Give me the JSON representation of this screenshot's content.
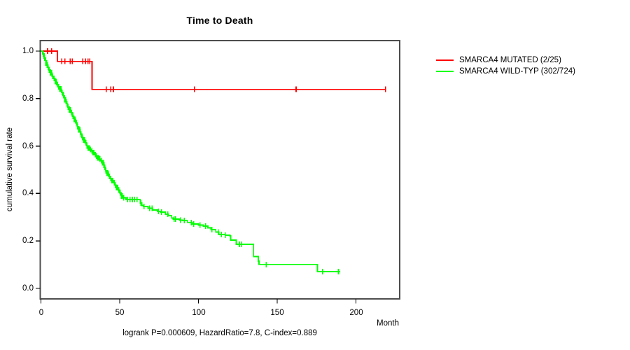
{
  "title": "Time to Death",
  "annotation": "logrank P=0.000609, HazardRatio=7.8, C-index=0.889",
  "legend": {
    "entries": [
      {
        "label": "SMARCA4 MUTATED (2/25)",
        "color": "#ff0000"
      },
      {
        "label": "SMARCA4 WILD-TYP (302/724)",
        "color": "#00ff00"
      }
    ]
  },
  "chart_data": {
    "type": "line",
    "subtype": "kaplan-meier-step-curves",
    "title": "Time to Death",
    "xlabel": "Month",
    "ylabel": "cumulative survival rate",
    "xlim": [
      0,
      228
    ],
    "ylim": [
      -0.04,
      1.04
    ],
    "grid": false,
    "legend_position": "right-outside-top",
    "x_axis": {
      "ticks": [
        0,
        50,
        100,
        150,
        200
      ],
      "tick_labels": [
        "0",
        "50",
        "100",
        "150",
        "200"
      ]
    },
    "y_axis": {
      "ticks": [
        1.0,
        0.8,
        0.6,
        0.4,
        0.2,
        0.0
      ],
      "tick_labels": [
        "1.0",
        "0.8",
        "0.6",
        "0.4",
        "0.2",
        "0.0"
      ]
    },
    "series": [
      {
        "name": "SMARCA4 MUTATED (2/25)",
        "color": "#ff0000",
        "events": "2 deaths / 25 patients",
        "steps": [
          [
            0,
            1.0
          ],
          [
            10.5,
            1.0
          ],
          [
            10.5,
            0.9565
          ],
          [
            32.5,
            0.9565
          ],
          [
            32.5,
            0.8385
          ],
          [
            219,
            0.8385
          ]
        ],
        "censor_months": [
          4.2,
          6.8,
          13.3,
          15.3,
          18.5,
          19.8,
          26.5,
          28.3,
          29.8,
          31.0,
          41.5,
          44.3,
          46.0,
          97.5,
          162,
          218.8
        ]
      },
      {
        "name": "SMARCA4 WILD-TYP (302/724)",
        "color": "#00ff00",
        "events": "302 deaths / 724 patients",
        "steps": [
          [
            0,
            1.0
          ],
          [
            1,
            0.988
          ],
          [
            2,
            0.97
          ],
          [
            3,
            0.95
          ],
          [
            4,
            0.932
          ],
          [
            5,
            0.92
          ],
          [
            6,
            0.908
          ],
          [
            7,
            0.894
          ],
          [
            8,
            0.885
          ],
          [
            9,
            0.872
          ],
          [
            10,
            0.858
          ],
          [
            11,
            0.85
          ],
          [
            12,
            0.84
          ],
          [
            13,
            0.826
          ],
          [
            14,
            0.812
          ],
          [
            15,
            0.795
          ],
          [
            16,
            0.778
          ],
          [
            17,
            0.764
          ],
          [
            18,
            0.752
          ],
          [
            19,
            0.74
          ],
          [
            20,
            0.726
          ],
          [
            21,
            0.712
          ],
          [
            22,
            0.698
          ],
          [
            23,
            0.682
          ],
          [
            24,
            0.668
          ],
          [
            25,
            0.65
          ],
          [
            26,
            0.636
          ],
          [
            27,
            0.625
          ],
          [
            28,
            0.613
          ],
          [
            29,
            0.601
          ],
          [
            30,
            0.592
          ],
          [
            31,
            0.586
          ],
          [
            32,
            0.58
          ],
          [
            33,
            0.572
          ],
          [
            34,
            0.564
          ],
          [
            35,
            0.557
          ],
          [
            36,
            0.55
          ],
          [
            37,
            0.545
          ],
          [
            38,
            0.538
          ],
          [
            39,
            0.53
          ],
          [
            40,
            0.51
          ],
          [
            41,
            0.495
          ],
          [
            42,
            0.485
          ],
          [
            43,
            0.472
          ],
          [
            44,
            0.463
          ],
          [
            45,
            0.455
          ],
          [
            46,
            0.445
          ],
          [
            47,
            0.435
          ],
          [
            48,
            0.425
          ],
          [
            49,
            0.415
          ],
          [
            50,
            0.403
          ],
          [
            51,
            0.39
          ],
          [
            52,
            0.382
          ],
          [
            54,
            0.375
          ],
          [
            62,
            0.375
          ],
          [
            63,
            0.36
          ],
          [
            64,
            0.35
          ],
          [
            65,
            0.345
          ],
          [
            68,
            0.338
          ],
          [
            71,
            0.33
          ],
          [
            74,
            0.325
          ],
          [
            76,
            0.322
          ],
          [
            79,
            0.313
          ],
          [
            81,
            0.307
          ],
          [
            83,
            0.297
          ],
          [
            84,
            0.292
          ],
          [
            88,
            0.288
          ],
          [
            90,
            0.286
          ],
          [
            93,
            0.278
          ],
          [
            96,
            0.271
          ],
          [
            100,
            0.267
          ],
          [
            103,
            0.263
          ],
          [
            106,
            0.255
          ],
          [
            108,
            0.248
          ],
          [
            111,
            0.238
          ],
          [
            113,
            0.227
          ],
          [
            117,
            0.224
          ],
          [
            120,
            0.221
          ],
          [
            120.5,
            0.204
          ],
          [
            124,
            0.186
          ],
          [
            135,
            0.186
          ],
          [
            135,
            0.134
          ],
          [
            137,
            0.134
          ],
          [
            138,
            0.115
          ],
          [
            138.5,
            0.101
          ],
          [
            175.5,
            0.101
          ],
          [
            175.5,
            0.071
          ],
          [
            190,
            0.071
          ]
        ],
        "censor_months": [
          55,
          56.5,
          58,
          59.5,
          61,
          63.5,
          65.5,
          69,
          70.5,
          74.5,
          76.5,
          80.5,
          84.5,
          85.5,
          88.5,
          91,
          95.5,
          97,
          101,
          104.5,
          108.5,
          112.5,
          114.5,
          117,
          126,
          127.5,
          143,
          178.7,
          188.9
        ],
        "dense_censoring": {
          "from": 1.5,
          "to": 53,
          "step": 0.75
        }
      }
    ]
  }
}
